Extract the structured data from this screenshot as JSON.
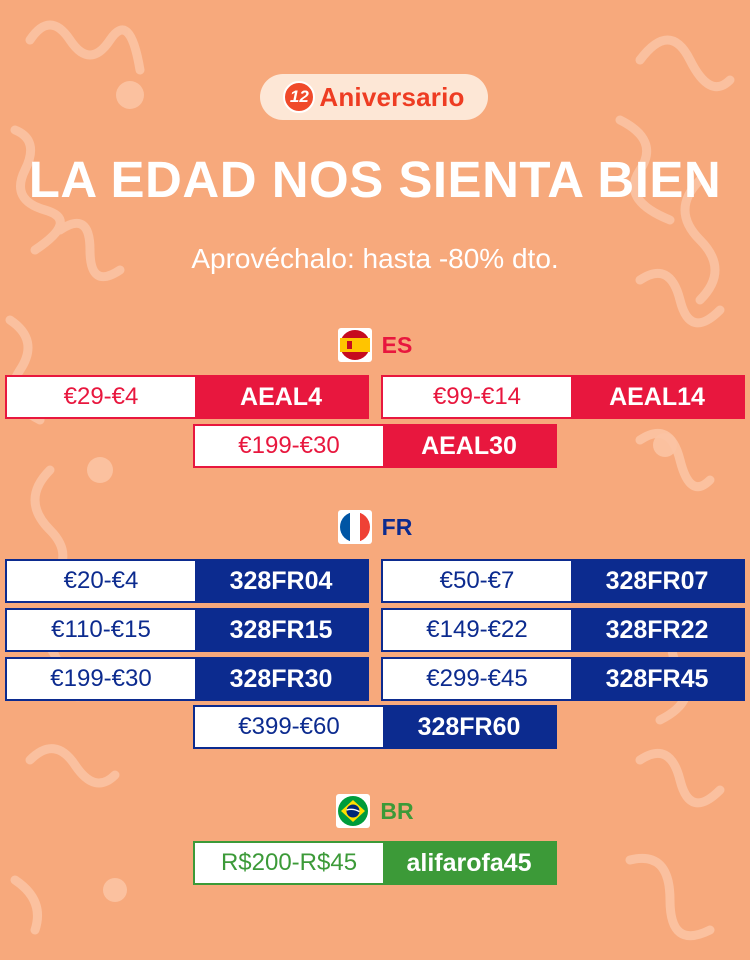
{
  "badge": {
    "number": "12",
    "text": "Aniversario"
  },
  "header": {
    "title": "LA EDAD NOS SIENTA BIEN",
    "subtitle": "Aprovéchalo: hasta -80% dto."
  },
  "colors": {
    "background": "#f7a97c",
    "es": "#e8173e",
    "fr": "#0c2b8f",
    "br": "#3c9a38"
  },
  "sections": {
    "es": {
      "label": "ES",
      "flag_icon": "spain-flag-icon",
      "coupons": [
        {
          "range": "€29-€4",
          "code": "AEAL4"
        },
        {
          "range": "€99-€14",
          "code": "AEAL14"
        },
        {
          "range": "€199-€30",
          "code": "AEAL30"
        }
      ]
    },
    "fr": {
      "label": "FR",
      "flag_icon": "france-flag-icon",
      "coupons": [
        {
          "range": "€20-€4",
          "code": "328FR04"
        },
        {
          "range": "€50-€7",
          "code": "328FR07"
        },
        {
          "range": "€110-€15",
          "code": "328FR15"
        },
        {
          "range": "€149-€22",
          "code": "328FR22"
        },
        {
          "range": "€199-€30",
          "code": "328FR30"
        },
        {
          "range": "€299-€45",
          "code": "328FR45"
        },
        {
          "range": "€399-€60",
          "code": "328FR60"
        }
      ]
    },
    "br": {
      "label": "BR",
      "flag_icon": "brazil-flag-icon",
      "coupons": [
        {
          "range": "R$200-R$45",
          "code": "alifarofa45"
        }
      ]
    }
  }
}
